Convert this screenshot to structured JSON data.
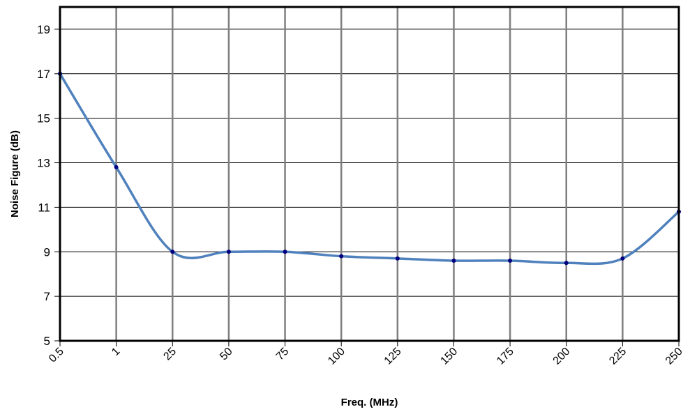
{
  "chart_data": {
    "type": "line",
    "categories": [
      "0.5",
      "1",
      "25",
      "50",
      "75",
      "100",
      "125",
      "150",
      "175",
      "200",
      "225",
      "250"
    ],
    "series": [
      {
        "values": [
          17.0,
          12.8,
          9.0,
          9.0,
          9.0,
          8.8,
          8.7,
          8.6,
          8.6,
          8.5,
          8.7,
          10.8
        ]
      }
    ],
    "xlabel": "Freq. (MHz)",
    "ylabel": "Noise Figure (dB)",
    "ylim": [
      5,
      20
    ],
    "yticks": [
      5,
      7,
      9,
      11,
      13,
      15,
      17,
      19
    ],
    "grid": true,
    "legend": "none",
    "colors": {
      "line": "#4f81bd",
      "marker": "#000080",
      "grid": "#000000",
      "frame": "#000000"
    }
  }
}
